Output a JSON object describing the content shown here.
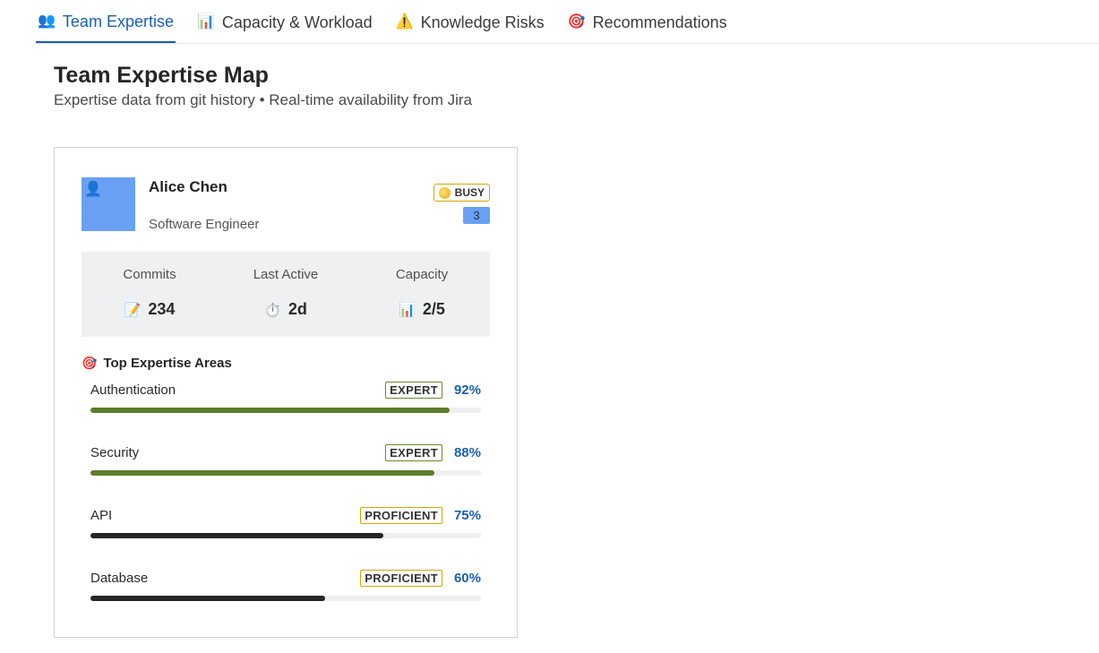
{
  "tabs": [
    {
      "label": "Team Expertise",
      "icon": "👥",
      "icon_name": "people-icon",
      "active": true
    },
    {
      "label": "Capacity & Workload",
      "icon": "📊",
      "icon_name": "bar-chart-icon",
      "active": false
    },
    {
      "label": "Knowledge Risks",
      "icon": "⚠️",
      "icon_name": "warning-icon",
      "active": false
    },
    {
      "label": "Recommendations",
      "icon": "🎯",
      "icon_name": "target-icon",
      "active": false
    }
  ],
  "header": {
    "title": "Team Expertise Map",
    "subtitle": "Expertise data from git history • Real-time availability from Jira"
  },
  "member": {
    "avatar_icon": "👤",
    "name": "Alice Chen",
    "role": "Software Engineer",
    "status": "BUSY",
    "count": "3",
    "stats": [
      {
        "label": "Commits",
        "icon": "📝",
        "icon_name": "memo-icon",
        "value": "234"
      },
      {
        "label": "Last Active",
        "icon": "⏱️",
        "icon_name": "stopwatch-icon",
        "value": "2d"
      },
      {
        "label": "Capacity",
        "icon": "📊",
        "icon_name": "bar-chart-icon",
        "value": "2/5"
      }
    ],
    "areas_heading": "Top Expertise Areas",
    "areas_icon": "🎯",
    "areas": [
      {
        "name": "Authentication",
        "level": "EXPERT",
        "level_key": "expert",
        "percent_label": "92%",
        "percent": 92
      },
      {
        "name": "Security",
        "level": "EXPERT",
        "level_key": "expert",
        "percent_label": "88%",
        "percent": 88
      },
      {
        "name": "API",
        "level": "PROFICIENT",
        "level_key": "proficient",
        "percent_label": "75%",
        "percent": 75
      },
      {
        "name": "Database",
        "level": "PROFICIENT",
        "level_key": "proficient",
        "percent_label": "60%",
        "percent": 60
      }
    ]
  },
  "colors": {
    "accent": "#1a5fb4",
    "expert_bar": "#5c7e2a",
    "proficient_bar": "#262626",
    "avatar": "#6aa0f4",
    "busy_border": "#d9a400"
  }
}
